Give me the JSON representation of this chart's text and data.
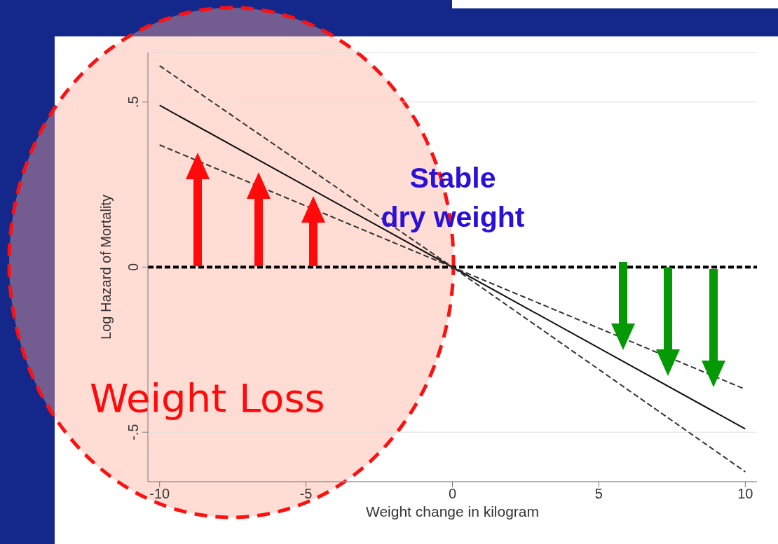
{
  "chart_data": {
    "type": "line",
    "xlabel": "Weight change in kilogram",
    "ylabel": "Log Hazard of Mortality",
    "xlim": [
      -10.4,
      10.4
    ],
    "xticks": [
      -10,
      -5,
      0,
      5,
      10
    ],
    "ylim": [
      -0.65,
      0.65
    ],
    "yticks": [
      {
        "value": -0.5,
        "label": "-.5"
      },
      0,
      {
        "value": 0.5,
        "label": ".5"
      }
    ],
    "grid": "y",
    "marker": "none",
    "series": [
      {
        "color": "#111111",
        "line_style": "solid",
        "x": [
          -10,
          0,
          10
        ],
        "values": [
          0.49,
          0,
          -0.49
        ]
      },
      {
        "color": "#333333",
        "line_style": "dashed",
        "x": [
          -10,
          0,
          10
        ],
        "values": [
          0.61,
          0,
          -0.37
        ]
      },
      {
        "color": "#333333",
        "line_style": "dashed",
        "x": [
          -10,
          0,
          10
        ],
        "values": [
          0.37,
          0,
          -0.62
        ]
      }
    ],
    "ref_lines": [
      {
        "axis": "y",
        "value": 0,
        "color": "#000000",
        "line_style": "dashed"
      }
    ],
    "annotations": [
      "Stable\ndry weight",
      "Weight Loss"
    ]
  }
}
